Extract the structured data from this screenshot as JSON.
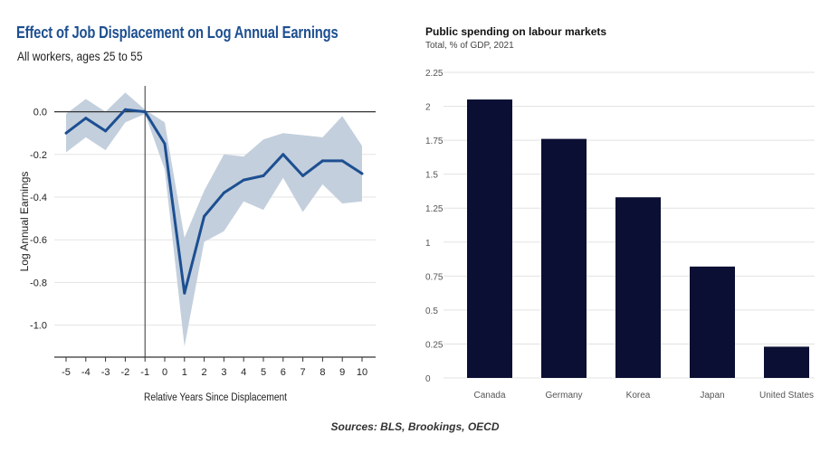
{
  "left_chart": {
    "title": "Effect of Job Displacement on Log Annual Earnings",
    "subtitle": "All workers, ages 25 to 55"
  },
  "right_chart": {
    "title": "Public spending on labour markets",
    "subtitle": "Total, % of GDP, 2021"
  },
  "source_note": "Sources: BLS, Brookings, OECD",
  "colors": {
    "line": "#1d4f91",
    "band": "#c3cfdd",
    "bar": "#0b0f33",
    "grid": "#e3e3e3"
  },
  "chart_data": [
    {
      "type": "line",
      "title": "Effect of Job Displacement on Log Annual Earnings",
      "subtitle": "All workers, ages 25 to 55",
      "xlabel": "Relative Years Since Displacement",
      "ylabel": "Log Annual Earnings",
      "x": [
        -5,
        -4,
        -3,
        -2,
        -1,
        0,
        1,
        2,
        3,
        4,
        5,
        6,
        7,
        8,
        9,
        10
      ],
      "series": [
        {
          "values": [
            -0.1,
            -0.03,
            -0.09,
            0.01,
            0.0,
            -0.15,
            -0.85,
            -0.49,
            -0.38,
            -0.32,
            -0.3,
            -0.2,
            -0.3,
            -0.23,
            -0.23,
            -0.29
          ],
          "lower": [
            -0.19,
            -0.12,
            -0.18,
            -0.05,
            -0.01,
            -0.27,
            -1.1,
            -0.61,
            -0.56,
            -0.42,
            -0.46,
            -0.31,
            -0.47,
            -0.34,
            -0.43,
            -0.42
          ],
          "upper": [
            -0.01,
            0.06,
            0.0,
            0.09,
            0.01,
            -0.05,
            -0.59,
            -0.37,
            -0.2,
            -0.21,
            -0.13,
            -0.1,
            -0.11,
            -0.12,
            -0.02,
            -0.16
          ]
        }
      ],
      "xlim": [
        -5,
        10
      ],
      "ylim": [
        -1.15,
        0.1
      ],
      "yticks": [
        0.0,
        -0.2,
        -0.4,
        -0.6,
        -0.8,
        -1.0
      ],
      "ytick_labels": [
        "0.0",
        "-0.2",
        "-0.4",
        "-0.6",
        "-0.8",
        "-1.0"
      ],
      "xtick_labels": [
        "-5",
        "-4",
        "-3",
        "-2",
        "-1",
        "0",
        "1",
        "2",
        "3",
        "4",
        "5",
        "6",
        "7",
        "8",
        "9",
        "10"
      ],
      "vline_x": -1,
      "grid": true,
      "legend": "none"
    },
    {
      "type": "bar",
      "title": "Public spending on labour markets",
      "subtitle": "Total, % of GDP, 2021",
      "categories": [
        "Canada",
        "Germany",
        "Korea",
        "Japan",
        "United States"
      ],
      "values": [
        2.05,
        1.76,
        1.33,
        0.82,
        0.23
      ],
      "ylim": [
        0,
        2.25
      ],
      "yticks": [
        0,
        0.25,
        0.5,
        0.75,
        1,
        1.25,
        1.5,
        1.75,
        2,
        2.25
      ],
      "ytick_labels": [
        "0",
        "0.25",
        "0.5",
        "0.75",
        "1",
        "1.25",
        "1.5",
        "1.75",
        "2",
        "2.25"
      ],
      "grid": true,
      "legend": "none"
    }
  ]
}
